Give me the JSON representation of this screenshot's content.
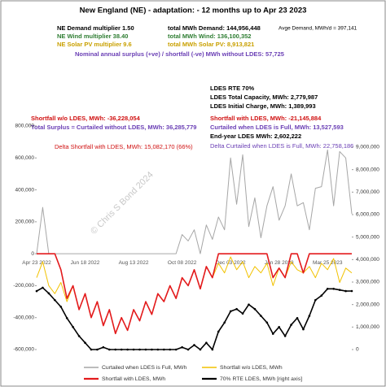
{
  "chart_data": {
    "type": "line",
    "title": "New England (NE) - adaptation: - 12 months up to  Apr 23 2023",
    "annotations": {
      "demand_multiplier": "NE Demand multiplier  1.50",
      "wind_multiplier": "NE Wind multiplier  38.40",
      "solar_multiplier": "NE Solar PV multiplier  9.6",
      "total_demand": "total MWh Demand:   144,956,448",
      "total_wind": "total MWh Wind:  136,100,352",
      "total_solar": "total MWh Solar PV:   8,913,821",
      "avge_demand": "Avge Demand, MWh/d = 397,141",
      "nominal": "Nominal annual surplus (+ve) / shortfall (-ve) MWh without LDES: 57,725",
      "ldes_rte": "LDES RTE 70%",
      "ldes_capacity": "LDES Total Capacity, MWh:  2,779,987",
      "ldes_initial": "LDES Initial Charge, MWh:  1,389,993",
      "shortfall_without": "Shortfall w/o LDES, MWh:  -36,228,054",
      "total_surplus": "Total Surplus = Curtailed without LDES, MWh: 36,285,779",
      "shortfall_with": "Shortfall with LDES, MWh:  -21,145,884",
      "curtailed_full": "Curtailed when LDES is Full, MWh: 13,527,593",
      "end_year": "End-year LDES MWh: 2,602,222",
      "delta_shortfall": "Delta Shortfall with LDES, MWh:   15,082,170   (66%)",
      "delta_curtailed": "Delta Curtailed when LDES is Full, MWh:   22,758,186",
      "watermark": "© Chris S Bond  2024"
    },
    "categories": [
      "Apr 23 2022",
      null,
      null,
      null,
      null,
      null,
      null,
      null,
      "Jun 18 2022",
      null,
      null,
      null,
      null,
      null,
      null,
      null,
      "Aug 13 2022",
      null,
      null,
      null,
      null,
      null,
      null,
      null,
      "Oct 08 2022",
      null,
      null,
      null,
      null,
      null,
      null,
      null,
      "Dec 03 2022",
      null,
      null,
      null,
      null,
      null,
      null,
      null,
      "Jan 28 2023",
      null,
      null,
      null,
      null,
      null,
      null,
      null,
      "Mar 25 2023",
      null,
      null,
      null,
      null
    ],
    "series": [
      {
        "name": "Curtailed when LDES is Full, MWh",
        "color": "#a6a6a6",
        "width": 1,
        "values": [
          0,
          290000,
          0,
          0,
          0,
          0,
          0,
          0,
          0,
          0,
          0,
          0,
          0,
          0,
          0,
          0,
          0,
          0,
          0,
          0,
          0,
          0,
          0,
          0,
          120000,
          80000,
          150000,
          0,
          180000,
          90000,
          230000,
          150000,
          600000,
          310000,
          620000,
          170000,
          350000,
          100000,
          300000,
          420000,
          210000,
          300000,
          500000,
          300000,
          320000,
          150000,
          410000,
          420000,
          650000,
          300000,
          640000,
          600000,
          250000
        ]
      },
      {
        "name": "Shortfall w/o LDES, MWh",
        "color": "#f2c200",
        "width": 1,
        "values": [
          -150000,
          -50000,
          -200000,
          -250000,
          -180000,
          -300000,
          -200000,
          -350000,
          -250000,
          -400000,
          -300000,
          -450000,
          -350000,
          -500000,
          -400000,
          -480000,
          -350000,
          -420000,
          -300000,
          -380000,
          -250000,
          -300000,
          -200000,
          -280000,
          -150000,
          -200000,
          -100000,
          -220000,
          -80000,
          -150000,
          -60000,
          -120000,
          -20000,
          -100000,
          -50000,
          -150000,
          -80000,
          -120000,
          -60000,
          -200000,
          -90000,
          -150000,
          -50000,
          -100000,
          -120000,
          -80000,
          -150000,
          -60000,
          -100000,
          -30000,
          -180000,
          -90000,
          -120000
        ]
      },
      {
        "name": "Shortfall with LDES, MWh",
        "color": "#e31a1c",
        "width": 1.6,
        "values": [
          0,
          0,
          0,
          0,
          -100000,
          -280000,
          -200000,
          -350000,
          -250000,
          -400000,
          -300000,
          -450000,
          -350000,
          -500000,
          -400000,
          -480000,
          -350000,
          -420000,
          -300000,
          -380000,
          -250000,
          -300000,
          -200000,
          -280000,
          -150000,
          -200000,
          -100000,
          -220000,
          -80000,
          -150000,
          0,
          0,
          0,
          0,
          0,
          0,
          0,
          0,
          0,
          -150000,
          -90000,
          -150000,
          0,
          0,
          -120000,
          0,
          0,
          0,
          0,
          0,
          0,
          0,
          0
        ]
      },
      {
        "name": "70% RTE LDES, MWh [right axis]",
        "color": "#000000",
        "width": 1.6,
        "axis": "y2",
        "values": [
          2600000,
          2750000,
          2500000,
          2200000,
          1900000,
          1400000,
          1000000,
          600000,
          300000,
          0,
          0,
          100000,
          0,
          0,
          0,
          0,
          0,
          0,
          0,
          0,
          0,
          0,
          0,
          0,
          100000,
          0,
          200000,
          0,
          300000,
          0,
          800000,
          1200000,
          1700000,
          1800000,
          1600000,
          2000000,
          1800000,
          1500000,
          1200000,
          700000,
          1000000,
          600000,
          1100000,
          1400000,
          900000,
          1500000,
          2200000,
          2400000,
          2700000,
          2700000,
          2650000,
          2600000,
          2602222
        ]
      }
    ],
    "ylim": [
      -600000,
      800000
    ],
    "yticks": [
      {
        "value": -600000,
        "label": "-600,000"
      },
      {
        "value": -400000,
        "label": "-400,000"
      },
      {
        "value": -200000,
        "label": "-200,000"
      },
      0,
      {
        "value": 200000,
        "label": "200,000"
      },
      {
        "value": 400000,
        "label": "400,000"
      },
      {
        "value": 600000,
        "label": "600,000"
      },
      {
        "value": 800000,
        "label": "800,000"
      }
    ],
    "y2lim": [
      0,
      9940000
    ],
    "y2ticks": [
      0,
      {
        "value": 1000000,
        "label": "1,000,000"
      },
      {
        "value": 2000000,
        "label": "2,000,000"
      },
      {
        "value": 3000000,
        "label": "3,000,000"
      },
      {
        "value": 4000000,
        "label": "4,000,000"
      },
      {
        "value": 5000000,
        "label": "5,000,000"
      },
      {
        "value": 6000000,
        "label": "6,000,000"
      },
      {
        "value": 7000000,
        "label": "7,000,000"
      },
      {
        "value": 8000000,
        "label": "8,000,000"
      },
      {
        "value": 9000000,
        "label": "9,000,000"
      }
    ],
    "grid": false
  }
}
